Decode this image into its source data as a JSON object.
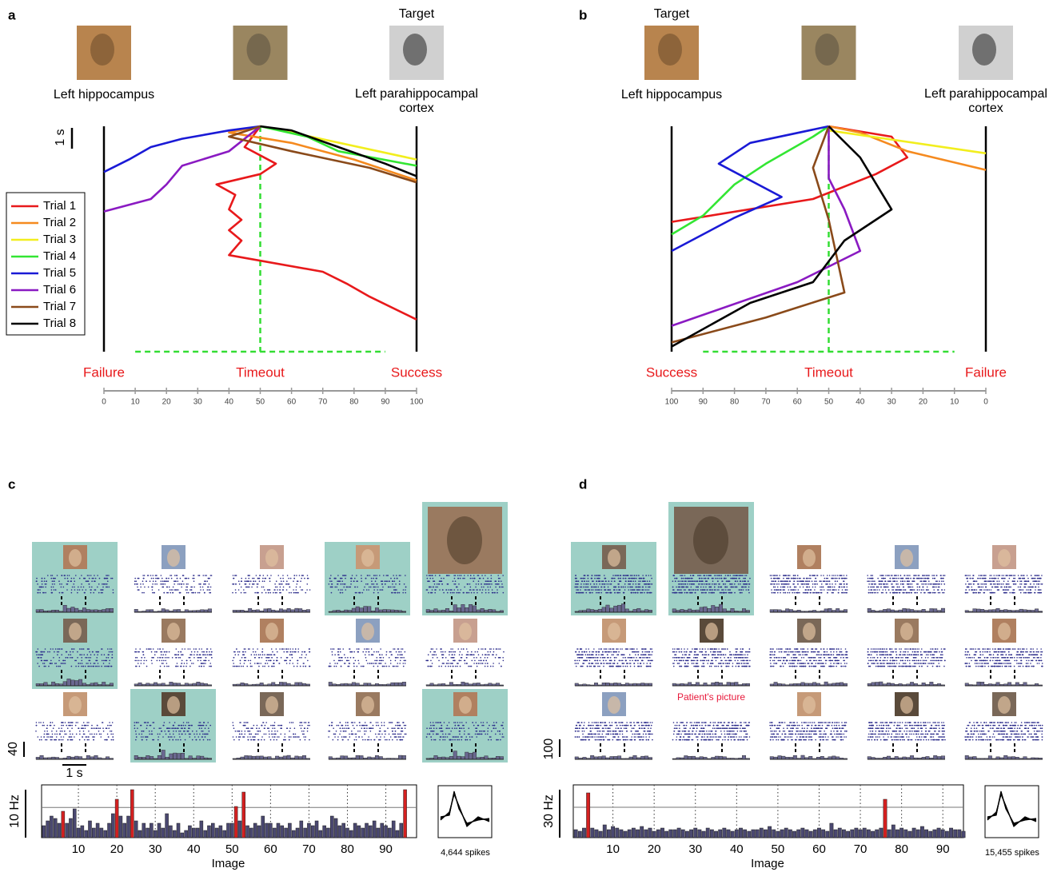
{
  "panels": [
    {
      "label": "a",
      "target_label": "Target",
      "target_side": "right",
      "left_region": "Left hippocampus",
      "right_region": "Left parahippocampal cortex",
      "chart": {
        "type": "line",
        "scale_bar": {
          "value": 1,
          "label": "1 s"
        },
        "xlim": [
          0,
          100
        ],
        "xticks": [
          0,
          10,
          20,
          30,
          40,
          50,
          60,
          70,
          80,
          90,
          100
        ],
        "end_labels": [
          "Failure",
          "Timeout",
          "Success"
        ],
        "legend": "left",
        "series": [
          {
            "name": "Trial 1",
            "color": "#e8191b",
            "t": [
              0,
              1,
              1.8,
              2.3,
              2.8,
              3.3,
              4,
              4.5,
              5,
              5.5,
              6.2,
              7,
              7.6,
              8.2,
              9.3
            ],
            "values": [
              50,
              45,
              55,
              50,
              36,
              42,
              40,
              44,
              40,
              44,
              40,
              70,
              78,
              85,
              100
            ]
          },
          {
            "name": "Trial 2",
            "color": "#f58a1f",
            "t": [
              0,
              0.3,
              0.8,
              1.6,
              2.6
            ],
            "values": [
              50,
              40,
              60,
              80,
              100
            ]
          },
          {
            "name": "Trial 3",
            "color": "#f2ee1e",
            "t": [
              0,
              0.3,
              1.6
            ],
            "values": [
              50,
              60,
              100
            ]
          },
          {
            "name": "Trial 4",
            "color": "#33e633",
            "t": [
              0,
              0.5,
              1.2,
              1.9
            ],
            "values": [
              50,
              65,
              75,
              100
            ]
          },
          {
            "name": "Trial 5",
            "color": "#1a1ad6",
            "t": [
              0,
              0.2,
              0.6,
              1,
              1.6,
              2.2
            ],
            "values": [
              50,
              40,
              25,
              15,
              8,
              0
            ]
          },
          {
            "name": "Trial 6",
            "color": "#8a1ac2",
            "t": [
              0,
              1.2,
              1.9,
              2.8,
              3.5,
              4.1
            ],
            "values": [
              50,
              40,
              25,
              20,
              15,
              0
            ]
          },
          {
            "name": "Trial 7",
            "color": "#8a4a1a",
            "t": [
              0,
              0.5,
              1.2,
              2,
              2.7
            ],
            "values": [
              50,
              40,
              60,
              85,
              100
            ]
          },
          {
            "name": "Trial 8",
            "color": "#000000",
            "t": [
              0,
              0.2,
              1,
              1.8,
              2.4
            ],
            "values": [
              50,
              60,
              75,
              90,
              100
            ]
          }
        ]
      }
    },
    {
      "label": "b",
      "target_label": "Target",
      "target_side": "left",
      "left_region": "Left hippocampus",
      "right_region": "Left parahippocampal cortex",
      "chart": {
        "type": "line",
        "xlim": [
          100,
          0
        ],
        "xticks": [
          100,
          90,
          80,
          70,
          60,
          50,
          40,
          30,
          20,
          10,
          0
        ],
        "end_labels": [
          "Success",
          "Timeout",
          "Failure"
        ],
        "series": [
          {
            "color": "#e8191b",
            "t": [
              0,
              0.5,
              1.5,
              2.3,
              3.5,
              4.6
            ],
            "values": [
              50,
              30,
              25,
              35,
              55,
              100
            ]
          },
          {
            "color": "#f58a1f",
            "t": [
              0,
              0.3,
              1.2,
              2.1
            ],
            "values": [
              50,
              40,
              25,
              0
            ]
          },
          {
            "color": "#f2ee1e",
            "t": [
              0,
              0.2,
              1.3
            ],
            "values": [
              50,
              50,
              0
            ]
          },
          {
            "color": "#33e633",
            "t": [
              0,
              0.5,
              1.8,
              2.8,
              4.3,
              5.2
            ],
            "values": [
              50,
              55,
              70,
              80,
              90,
              100
            ]
          },
          {
            "color": "#1a1ad6",
            "t": [
              0,
              0.8,
              1.8,
              3.4,
              4.4,
              6
            ],
            "values": [
              50,
              75,
              85,
              65,
              80,
              100
            ]
          },
          {
            "color": "#8a1ac2",
            "t": [
              0,
              2.5,
              4,
              6,
              7.5,
              9.6
            ],
            "values": [
              50,
              50,
              45,
              40,
              60,
              100
            ]
          },
          {
            "color": "#8a4a1a",
            "t": [
              0,
              2,
              4.5,
              8,
              9.2,
              10.4
            ],
            "values": [
              50,
              55,
              50,
              45,
              70,
              100
            ]
          },
          {
            "color": "#000000",
            "t": [
              0,
              1.5,
              4,
              5.5,
              7.5,
              8.5,
              10.6
            ],
            "values": [
              50,
              40,
              30,
              45,
              55,
              75,
              100
            ]
          }
        ]
      }
    }
  ],
  "rasters": [
    {
      "label": "c",
      "scale_bars": [
        {
          "value": 40,
          "label": "40"
        },
        {
          "value": 1,
          "label": "1 s"
        }
      ],
      "cells": [
        {
          "highlight": true
        },
        {
          "highlight": false
        },
        {
          "highlight": false
        },
        {
          "highlight": true
        },
        {
          "highlight": true,
          "large": true
        },
        {
          "highlight": true
        },
        {
          "highlight": false
        },
        {
          "highlight": false
        },
        {
          "highlight": false
        },
        {
          "highlight": false
        },
        {
          "highlight": false
        },
        {
          "highlight": true
        },
        {
          "highlight": false
        },
        {
          "highlight": false
        },
        {
          "highlight": true
        }
      ]
    },
    {
      "label": "d",
      "scale_bars": [
        {
          "value": 100,
          "label": "100"
        }
      ],
      "cells": [
        {
          "highlight": true
        },
        {
          "highlight": true,
          "large": true
        },
        {
          "highlight": false
        },
        {
          "highlight": false
        },
        {
          "highlight": false
        },
        {
          "highlight": false
        },
        {
          "highlight": false
        },
        {
          "highlight": false
        },
        {
          "highlight": false
        },
        {
          "highlight": false
        },
        {
          "highlight": false
        },
        {
          "highlight": false,
          "note": "Patient's picture"
        },
        {
          "highlight": false
        },
        {
          "highlight": false
        },
        {
          "highlight": false
        }
      ]
    }
  ],
  "responses": [
    {
      "type": "bar",
      "x_label": "Image",
      "scale_bar": {
        "value": 10,
        "label": "10 Hz"
      },
      "ylim": [
        0,
        11
      ],
      "xlim": [
        0,
        98
      ],
      "xticks": [
        10,
        20,
        30,
        40,
        50,
        60,
        70,
        80,
        90
      ],
      "color": "#4a4870",
      "highlight_color": "#d42020",
      "threshold": 6.3,
      "highlight": [
        6,
        20,
        24,
        51,
        53,
        95
      ],
      "spikes_label": "4,644 spikes",
      "x": [
        1,
        2,
        3,
        4,
        5,
        6,
        7,
        8,
        9,
        10,
        11,
        12,
        13,
        14,
        15,
        16,
        17,
        18,
        19,
        20,
        21,
        22,
        23,
        24,
        25,
        26,
        27,
        28,
        29,
        30,
        31,
        32,
        33,
        34,
        35,
        36,
        37,
        38,
        39,
        40,
        41,
        42,
        43,
        44,
        45,
        46,
        47,
        48,
        49,
        50,
        51,
        52,
        53,
        54,
        55,
        56,
        57,
        58,
        59,
        60,
        61,
        62,
        63,
        64,
        65,
        66,
        67,
        68,
        69,
        70,
        71,
        72,
        73,
        74,
        75,
        76,
        77,
        78,
        79,
        80,
        81,
        82,
        83,
        84,
        85,
        86,
        87,
        88,
        89,
        90,
        91,
        92,
        93,
        94,
        95
      ],
      "values": [
        2.5,
        3.5,
        4.5,
        4,
        3,
        5.5,
        3,
        4,
        6,
        2,
        2.5,
        1.5,
        3.5,
        2,
        3,
        2,
        1.5,
        3,
        5,
        8,
        4.5,
        3,
        4.5,
        10,
        3.5,
        1.5,
        3,
        2,
        3,
        1.5,
        3,
        2,
        5,
        2.5,
        1.5,
        3,
        1,
        1.5,
        2.5,
        2,
        2,
        3.5,
        1.5,
        2.5,
        3,
        2,
        2.5,
        1.5,
        3,
        3,
        6.5,
        3.5,
        9.5,
        2.5,
        2,
        3,
        2.5,
        4.5,
        3,
        3,
        2,
        3,
        2.5,
        2,
        3,
        1.5,
        2,
        3.5,
        2,
        3,
        2.5,
        3.5,
        1.5,
        2.5,
        2,
        4.5,
        4,
        2.5,
        3,
        2,
        1.5,
        3,
        2.5,
        2,
        3,
        2.5,
        3.5,
        2,
        3,
        2.5,
        2,
        3.5,
        1.5,
        3,
        10
      ]
    },
    {
      "type": "bar",
      "x_label": "Image",
      "scale_bar": {
        "value": 30,
        "label": "30 Hz"
      },
      "ylim": [
        0,
        33
      ],
      "xlim": [
        0,
        95
      ],
      "xticks": [
        10,
        20,
        30,
        40,
        50,
        60,
        70,
        80,
        90
      ],
      "color": "#4a4870",
      "highlight_color": "#d42020",
      "threshold": 19,
      "highlight": [
        4,
        76
      ],
      "spikes_label": "15,455 spikes",
      "x": [
        1,
        2,
        3,
        4,
        5,
        6,
        7,
        8,
        9,
        10,
        11,
        12,
        13,
        14,
        15,
        16,
        17,
        18,
        19,
        20,
        21,
        22,
        23,
        24,
        25,
        26,
        27,
        28,
        29,
        30,
        31,
        32,
        33,
        34,
        35,
        36,
        37,
        38,
        39,
        40,
        41,
        42,
        43,
        44,
        45,
        46,
        47,
        48,
        49,
        50,
        51,
        52,
        53,
        54,
        55,
        56,
        57,
        58,
        59,
        60,
        61,
        62,
        63,
        64,
        65,
        66,
        67,
        68,
        69,
        70,
        71,
        72,
        73,
        74,
        75,
        76,
        77,
        78,
        79,
        80,
        81,
        82,
        83,
        84,
        85,
        86,
        87,
        88,
        89,
        90,
        91,
        92,
        93,
        94,
        95
      ],
      "values": [
        5,
        4,
        6,
        28,
        6,
        5,
        4,
        8,
        5,
        7,
        6,
        5,
        4,
        5,
        6,
        5,
        7,
        5,
        6,
        4,
        5,
        6,
        4,
        5,
        5,
        6,
        5,
        4,
        5,
        6,
        5,
        4,
        6,
        5,
        4,
        5,
        6,
        5,
        4,
        5,
        6,
        5,
        4,
        5,
        5,
        6,
        5,
        7,
        5,
        4,
        5,
        6,
        5,
        4,
        5,
        6,
        5,
        4,
        5,
        6,
        5,
        4,
        9,
        5,
        6,
        5,
        4,
        5,
        6,
        5,
        6,
        5,
        4,
        5,
        6,
        24,
        5,
        8,
        5,
        6,
        5,
        4,
        6,
        5,
        7,
        5,
        4,
        5,
        6,
        5,
        4,
        6,
        5,
        5,
        4
      ]
    }
  ]
}
